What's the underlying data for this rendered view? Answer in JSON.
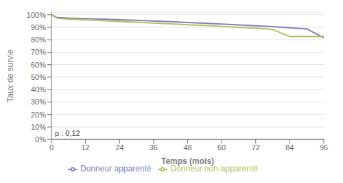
{
  "chart_data": {
    "type": "line",
    "title": "",
    "xlabel": "Temps (mois)",
    "ylabel": "Taux de survie",
    "annotation": "p : 0,12",
    "x": [
      0,
      2,
      6,
      12,
      18,
      24,
      30,
      36,
      42,
      48,
      54,
      60,
      66,
      72,
      78,
      84,
      90,
      96
    ],
    "series": [
      {
        "name": "Donneur apparenté",
        "color": "#7b82c0",
        "values": [
          1.0,
          0.978,
          0.973,
          0.97,
          0.965,
          0.96,
          0.955,
          0.95,
          0.944,
          0.938,
          0.932,
          0.926,
          0.919,
          0.912,
          0.905,
          0.896,
          0.887,
          0.815
        ]
      },
      {
        "name": "Donneur non-apparenté",
        "color": "#b8bc5a",
        "values": [
          1.0,
          0.972,
          0.965,
          0.96,
          0.953,
          0.946,
          0.94,
          0.934,
          0.927,
          0.92,
          0.914,
          0.907,
          0.9,
          0.892,
          0.882,
          0.826,
          0.826,
          0.826
        ]
      }
    ],
    "xlim": [
      0,
      96
    ],
    "xticks": [
      0,
      12,
      24,
      36,
      48,
      60,
      72,
      84,
      96
    ],
    "ylim": [
      0,
      1.02
    ],
    "yticks": [
      {
        "value": 0.0,
        "label": "0%"
      },
      {
        "value": 0.1,
        "label": "10%"
      },
      {
        "value": 0.2,
        "label": "20%"
      },
      {
        "value": 0.3,
        "label": "30%"
      },
      {
        "value": 0.4,
        "label": "40%"
      },
      {
        "value": 0.5,
        "label": "50%"
      },
      {
        "value": 0.6,
        "label": "60%"
      },
      {
        "value": 0.7,
        "label": "70%"
      },
      {
        "value": 0.8,
        "label": "80%"
      },
      {
        "value": 0.9,
        "label": "90%"
      },
      {
        "value": 1.0,
        "label": "100%"
      }
    ],
    "grid": true,
    "legend": "bottom",
    "marker": "none",
    "line_style": "solid"
  }
}
